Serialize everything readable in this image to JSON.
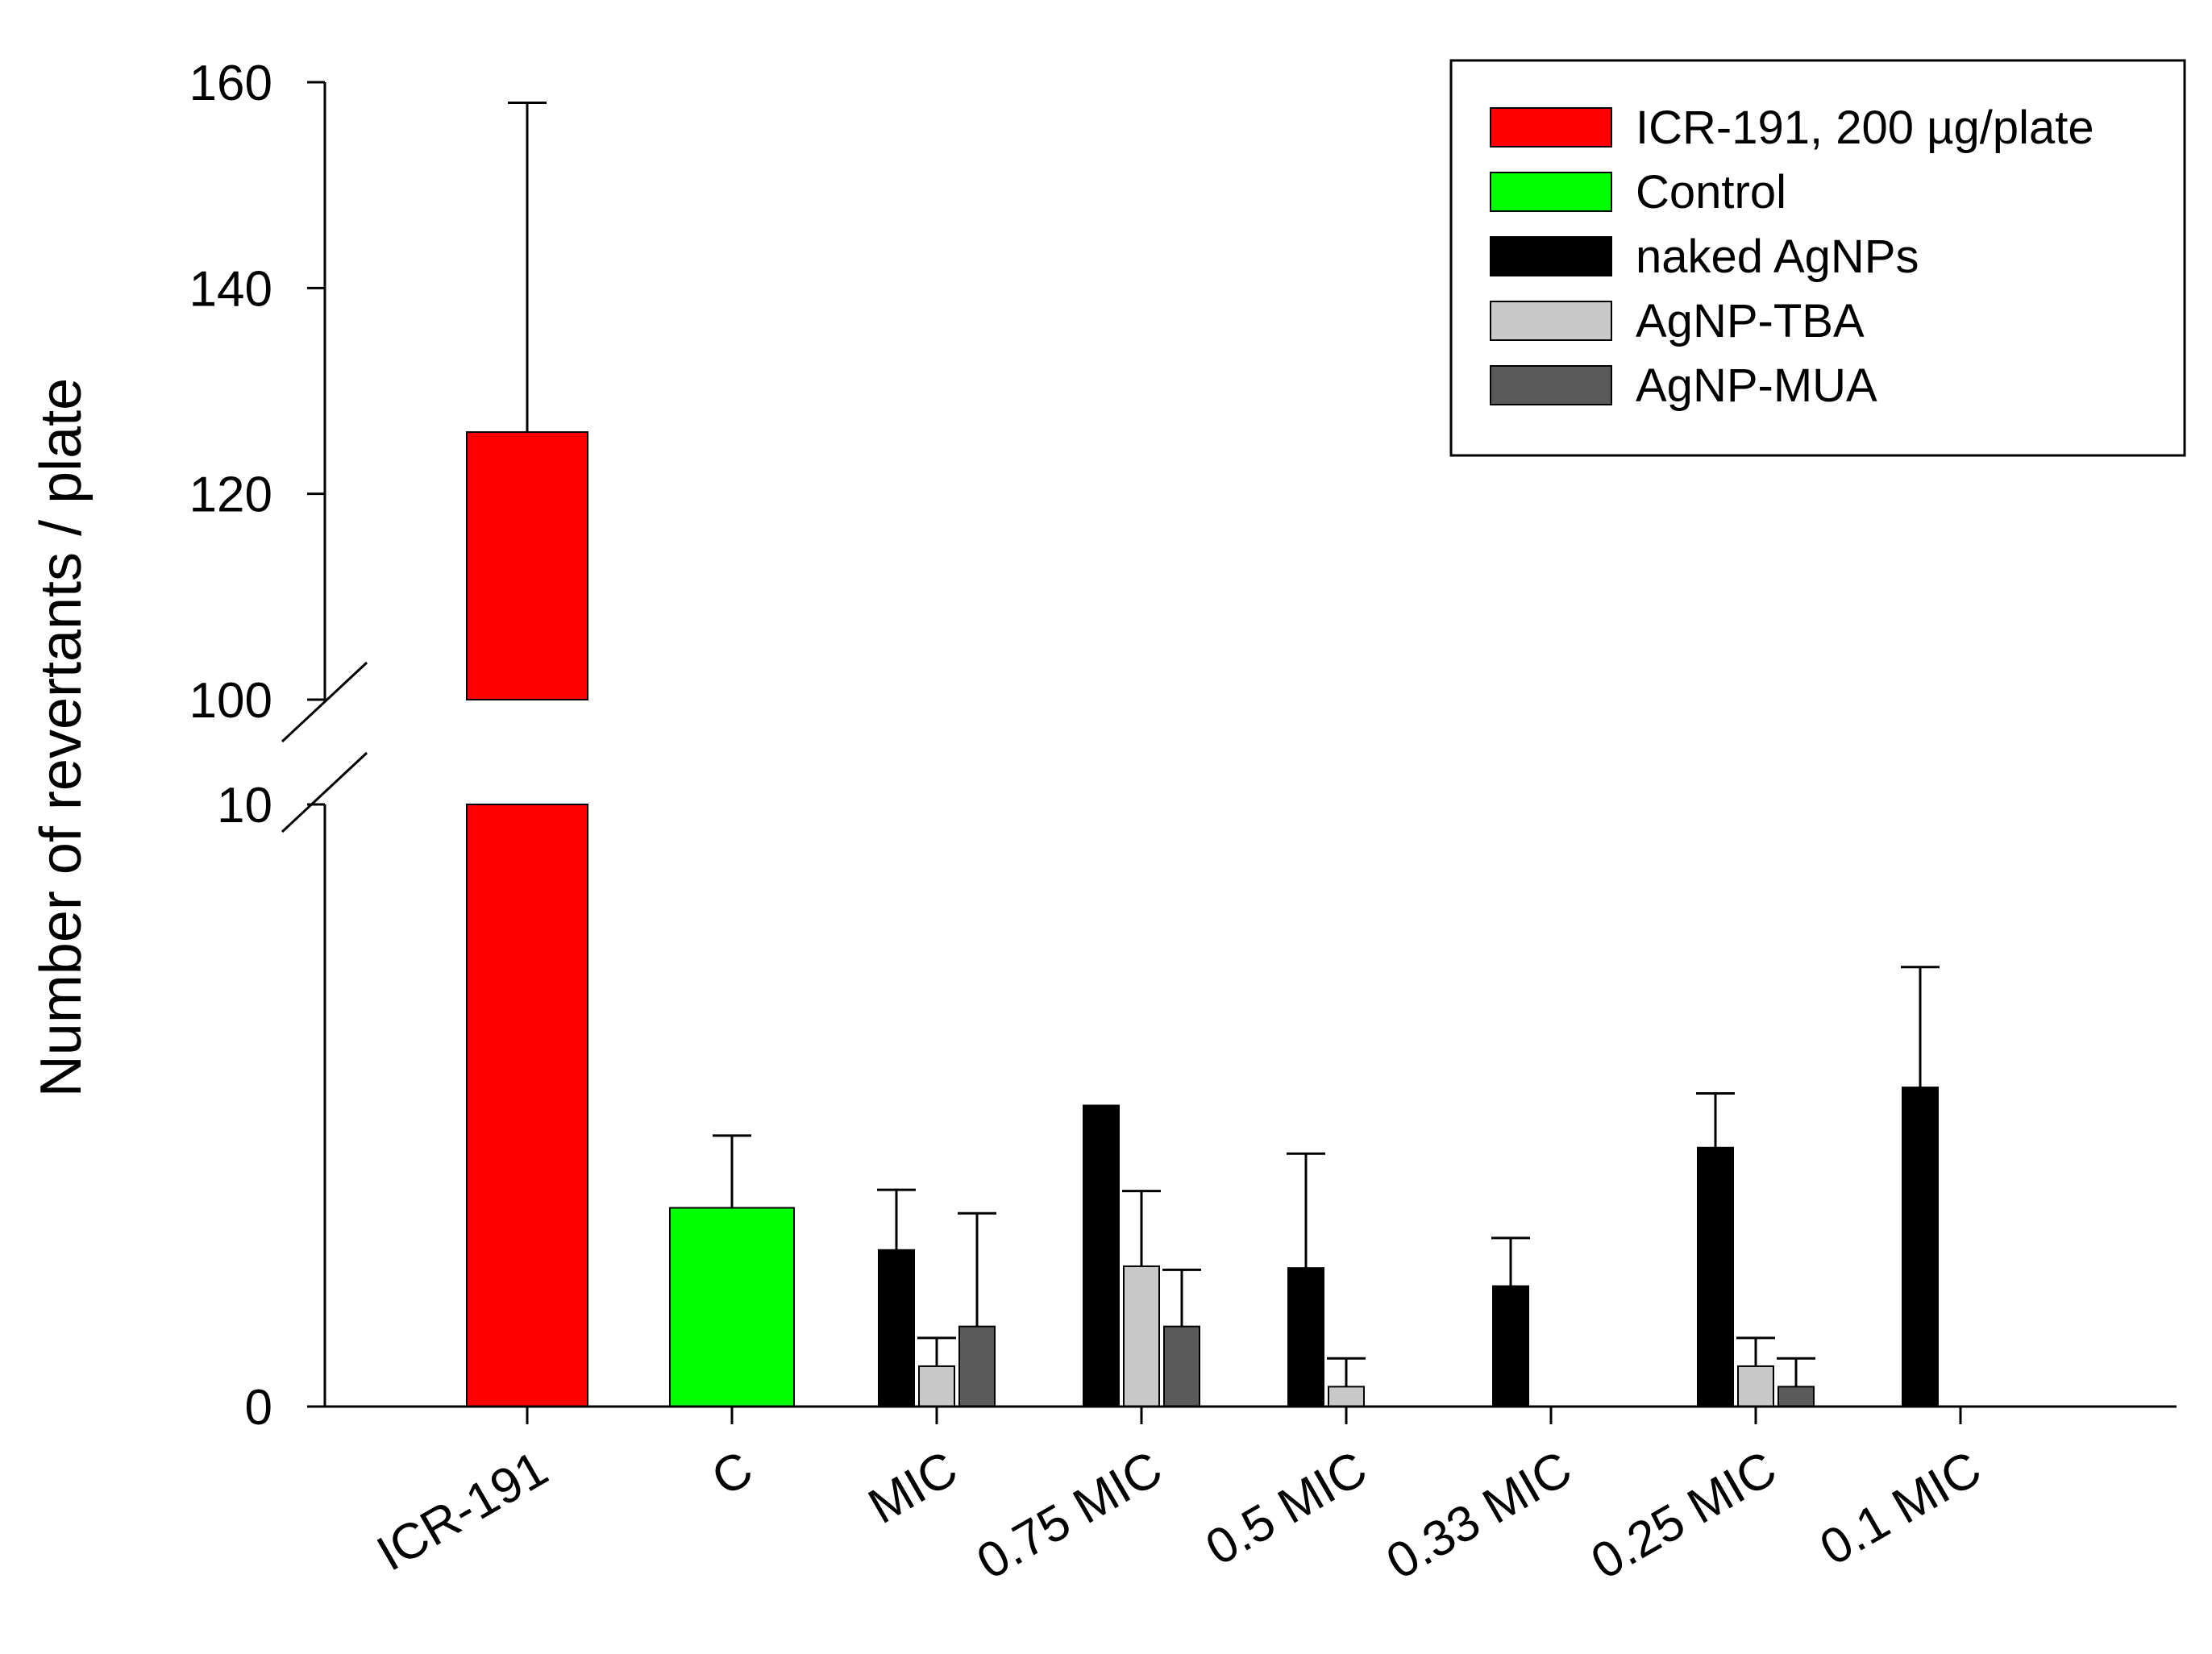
{
  "chart_data": {
    "type": "bar",
    "ylabel": "Number of revertants / plate",
    "xlabel": "",
    "axis_break": {
      "lower_range": [
        0,
        10
      ],
      "upper_range": [
        100,
        160
      ]
    },
    "y_ticks_lower": [
      "0",
      "10"
    ],
    "y_ticks_upper": [
      "100",
      "120",
      "140",
      "160"
    ],
    "categories": [
      "ICR-191",
      "C",
      "MIC",
      "0.75 MIC",
      "0.5 MIC",
      "0.33 MIC",
      "0.25 MIC",
      "0.1 MIC"
    ],
    "series": [
      {
        "name": "ICR-191, 200 µg/plate",
        "color": "#ff0000",
        "values": [
          126,
          null,
          null,
          null,
          null,
          null,
          null,
          null
        ],
        "errors": [
          32,
          null,
          null,
          null,
          null,
          null,
          null,
          null
        ]
      },
      {
        "name": "Control",
        "color": "#00ff00",
        "values": [
          null,
          3.3,
          null,
          null,
          null,
          null,
          null,
          null
        ],
        "errors": [
          null,
          1.2,
          null,
          null,
          null,
          null,
          null,
          null
        ]
      },
      {
        "name": "naked AgNPs",
        "color": "#000000",
        "values": [
          null,
          null,
          2.6,
          5.0,
          2.3,
          2.0,
          4.3,
          5.3
        ],
        "errors": [
          null,
          null,
          1.0,
          null,
          1.9,
          0.8,
          0.9,
          2.0
        ]
      },
      {
        "name": "AgNP-TBA",
        "color": "#c8c8c8",
        "values": [
          null,
          null,
          0.67,
          2.33,
          0.33,
          0,
          0.67,
          0
        ],
        "errors": [
          null,
          null,
          0.47,
          1.25,
          0.47,
          null,
          0.47,
          null
        ]
      },
      {
        "name": "AgNP-MUA",
        "color": "#5a5a5a",
        "values": [
          null,
          null,
          1.33,
          1.33,
          0,
          0,
          0.33,
          0
        ],
        "errors": [
          null,
          null,
          1.88,
          0.94,
          null,
          null,
          0.47,
          null
        ]
      }
    ]
  }
}
